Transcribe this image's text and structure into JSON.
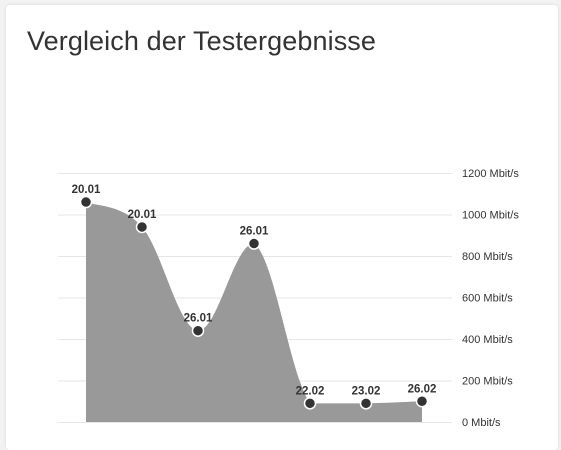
{
  "title": "Vergleich der Testergebnisse",
  "chart_data": {
    "type": "area",
    "title": "Vergleich der Testergebnisse",
    "xlabel": "",
    "ylabel": "",
    "y_unit": "Mbit/s",
    "ylim": [
      0,
      1200
    ],
    "y_ticks": [
      0,
      200,
      400,
      600,
      800,
      1000,
      1200
    ],
    "y_tick_labels": [
      "0 Mbit/s",
      "200 Mbit/s",
      "400 Mbit/s",
      "600 Mbit/s",
      "800 Mbit/s",
      "1000 Mbit/s",
      "1200 Mbit/s"
    ],
    "grid": true,
    "y_axis_position": "right",
    "categories": [
      "20.01",
      "20.01",
      "26.01",
      "26.01",
      "22.02",
      "23.02",
      "26.02"
    ],
    "values": [
      1060,
      940,
      440,
      860,
      90,
      90,
      100
    ],
    "colors": {
      "area": "#999999",
      "point": "#333333",
      "point_outline": "#ffffff",
      "grid": "#e6e6e6"
    }
  }
}
